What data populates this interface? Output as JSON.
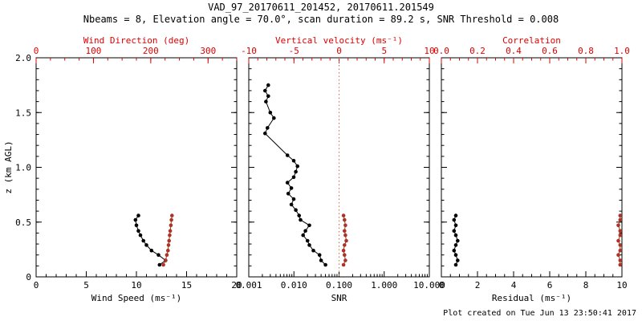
{
  "header": {
    "title": "VAD_97_20170611_201452, 20170611.201549",
    "subtitle": "Nbeams = 8, Elevation angle = 70.0°, scan duration = 89.2 s, SNR Threshold = 0.008"
  },
  "footer": {
    "created": "Plot created on Tue Jun 13 23:50:41 2017"
  },
  "colors": {
    "axis_red": "#e00000",
    "data_red": "#aa3527",
    "black": "#000000",
    "zero_line": "#dd6644"
  },
  "chart_data": {
    "type": "line",
    "title": "VAD_97_20170611_201452, 20170611.201549",
    "subtitle": "Nbeams = 8, Elevation angle = 70.0°, scan duration = 89.2 s, SNR Threshold = 0.008",
    "y_axis_label": "z (km AGL)",
    "panels": [
      {
        "id": "wind",
        "bottom_axis": {
          "label": "Wind Speed (ms⁻¹)",
          "min": 0,
          "max": 20,
          "scale": "linear",
          "ticks": [
            0,
            5,
            10,
            15,
            20
          ],
          "tick_labels": [
            "0",
            "5",
            "10",
            "15",
            "20"
          ],
          "minor_step": 1,
          "color": "#000000"
        },
        "top_axis": {
          "label": "Wind Direction (deg)",
          "min": 0,
          "max": 350,
          "scale": "linear",
          "ticks": [
            0,
            100,
            200,
            300
          ],
          "tick_labels": [
            "0",
            "100",
            "200",
            "300"
          ],
          "minor_step": 25,
          "color": "#e00000"
        },
        "y_axis": {
          "min": 0,
          "max": 2,
          "ticks": [
            0,
            0.5,
            1,
            1.5,
            2
          ],
          "tick_labels": [
            "0",
            "0.5",
            "1.0",
            "1.5",
            "2.0"
          ],
          "minor_step": 0.1,
          "show_labels": true
        },
        "series": [
          {
            "name": "wind-speed",
            "axis": "bottom",
            "color": "#000000",
            "line": true,
            "z": [
              0.11,
              0.15,
              0.2,
              0.24,
              0.29,
              0.33,
              0.38,
              0.42,
              0.47,
              0.52,
              0.56
            ],
            "x": [
              12.3,
              12.9,
              12.2,
              11.5,
              11.0,
              10.7,
              10.4,
              10.2,
              10.0,
              9.9,
              10.2
            ]
          },
          {
            "name": "wind-direction",
            "axis": "top",
            "color": "#aa3527",
            "line": true,
            "z": [
              0.11,
              0.15,
              0.2,
              0.24,
              0.29,
              0.33,
              0.38,
              0.42,
              0.47,
              0.52,
              0.56
            ],
            "x": [
              222,
              226,
              228,
              230,
              231,
              232,
              233,
              234,
              235,
              236,
              237
            ]
          }
        ]
      },
      {
        "id": "snr",
        "bottom_axis": {
          "label": "SNR",
          "min": 0.001,
          "max": 10,
          "scale": "log",
          "ticks": [
            0.001,
            0.01,
            0.1,
            1,
            10
          ],
          "tick_labels": [
            "0.001",
            "0.010",
            "0.100",
            "1.000",
            "10.000"
          ],
          "color": "#000000"
        },
        "top_axis": {
          "label": "Vertical velocity (ms⁻¹)",
          "min": -10,
          "max": 10,
          "scale": "linear",
          "ticks": [
            -10,
            -5,
            0,
            5,
            10
          ],
          "tick_labels": [
            "-10",
            "-5",
            "0",
            "5",
            "10"
          ],
          "minor_step": 1,
          "color": "#e00000"
        },
        "y_axis": {
          "min": 0,
          "max": 2,
          "ticks": [
            0,
            0.5,
            1,
            1.5,
            2
          ],
          "tick_labels": [
            "0",
            "0.5",
            "1.0",
            "1.5",
            "2.0"
          ],
          "minor_step": 0.1,
          "show_labels": false
        },
        "vlines": [
          {
            "x": 0,
            "axis": "top",
            "color": "#dd6644"
          }
        ],
        "series": [
          {
            "name": "snr-profile",
            "axis": "bottom",
            "color": "#000000",
            "line": true,
            "z": [
              0.11,
              0.15,
              0.2,
              0.24,
              0.29,
              0.33,
              0.38,
              0.42,
              0.47,
              0.52,
              0.56,
              0.61,
              0.66,
              0.71,
              0.76,
              0.81,
              0.86,
              0.91,
              0.96,
              1.01,
              1.06,
              1.11,
              1.31,
              1.36,
              1.45,
              1.5,
              1.6,
              1.65,
              1.7,
              1.75
            ],
            "x": [
              0.05,
              0.04,
              0.037,
              0.027,
              0.022,
              0.02,
              0.016,
              0.018,
              0.022,
              0.014,
              0.013,
              0.011,
              0.0088,
              0.0099,
              0.0075,
              0.0088,
              0.0072,
              0.0099,
              0.011,
              0.012,
              0.0099,
              0.0072,
              0.0023,
              0.0026,
              0.0036,
              0.003,
              0.0024,
              0.0027,
              0.0023,
              0.0027
            ]
          },
          {
            "name": "vertical-velocity",
            "axis": "top",
            "color": "#aa3527",
            "line": true,
            "z": [
              0.11,
              0.15,
              0.2,
              0.24,
              0.29,
              0.33,
              0.38,
              0.42,
              0.47,
              0.52,
              0.56
            ],
            "x": [
              0.5,
              0.7,
              0.6,
              0.5,
              0.6,
              0.8,
              0.7,
              0.6,
              0.7,
              0.6,
              0.5
            ]
          }
        ]
      },
      {
        "id": "residual",
        "bottom_axis": {
          "label": "Residual (ms⁻¹)",
          "min": 0,
          "max": 10,
          "scale": "linear",
          "ticks": [
            0,
            2,
            4,
            6,
            8,
            10
          ],
          "tick_labels": [
            "0",
            "2",
            "4",
            "6",
            "8",
            "10"
          ],
          "minor_step": 0.5,
          "color": "#000000"
        },
        "top_axis": {
          "label": "Correlation",
          "min": 0,
          "max": 1,
          "scale": "linear",
          "ticks": [
            0,
            0.2,
            0.4,
            0.6,
            0.8,
            1
          ],
          "tick_labels": [
            "0.0",
            "0.2",
            "0.4",
            "0.6",
            "0.8",
            "1.0"
          ],
          "minor_step": 0.05,
          "color": "#e00000"
        },
        "y_axis": {
          "min": 0,
          "max": 2,
          "ticks": [
            0,
            0.5,
            1,
            1.5,
            2
          ],
          "tick_labels": [
            "0",
            "0.5",
            "1.0",
            "1.5",
            "2.0"
          ],
          "minor_step": 0.1,
          "show_labels": false
        },
        "series": [
          {
            "name": "residual",
            "axis": "bottom",
            "color": "#000000",
            "line": true,
            "z": [
              0.11,
              0.15,
              0.2,
              0.24,
              0.29,
              0.33,
              0.38,
              0.42,
              0.47,
              0.52,
              0.56
            ],
            "x": [
              0.8,
              0.9,
              0.8,
              0.7,
              0.8,
              0.9,
              0.8,
              0.7,
              0.8,
              0.7,
              0.8
            ]
          },
          {
            "name": "correlation",
            "axis": "top",
            "color": "#aa3527",
            "line": true,
            "z": [
              0.11,
              0.15,
              0.2,
              0.24,
              0.29,
              0.33,
              0.38,
              0.42,
              0.47,
              0.52,
              0.56
            ],
            "x": [
              0.99,
              0.99,
              0.98,
              0.99,
              0.99,
              0.98,
              0.99,
              0.99,
              0.98,
              0.99,
              0.99
            ]
          }
        ]
      }
    ]
  }
}
